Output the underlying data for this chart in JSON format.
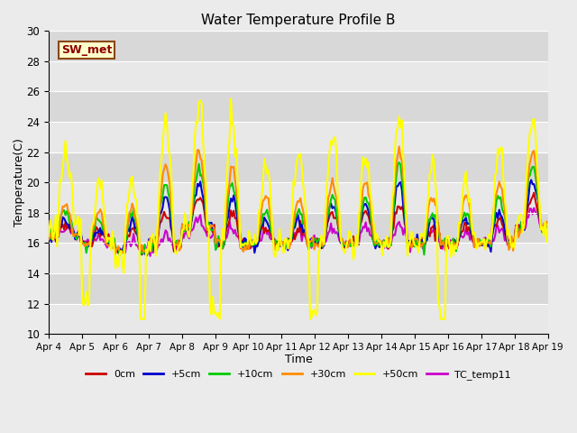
{
  "title": "Water Temperature Profile B",
  "xlabel": "Time",
  "ylabel": "Temperature(C)",
  "ylim": [
    10,
    30
  ],
  "xlim": [
    0,
    15
  ],
  "background_color": "#ebebeb",
  "x_tick_labels": [
    "Apr 4",
    "Apr 5",
    "Apr 6",
    "Apr 7",
    "Apr 8",
    "Apr 9",
    "Apr 10",
    "Apr 11",
    "Apr 12",
    "Apr 13",
    "Apr 14",
    "Apr 15",
    "Apr 16",
    "Apr 17",
    "Apr 18",
    "Apr 19"
  ],
  "sw_met_label": "SW_met",
  "legend_entries": [
    "0cm",
    "+5cm",
    "+10cm",
    "+30cm",
    "+50cm",
    "TC_temp11"
  ],
  "line_colors": {
    "0cm": "#cc0000",
    "+5cm": "#0000cc",
    "+10cm": "#00cc00",
    "+30cm": "#ff8c00",
    "+50cm": "#ffff00",
    "TC_temp11": "#cc00cc"
  },
  "band_colors": [
    "#e8e8e8",
    "#d8d8d8"
  ],
  "grid_color": "#ffffff"
}
